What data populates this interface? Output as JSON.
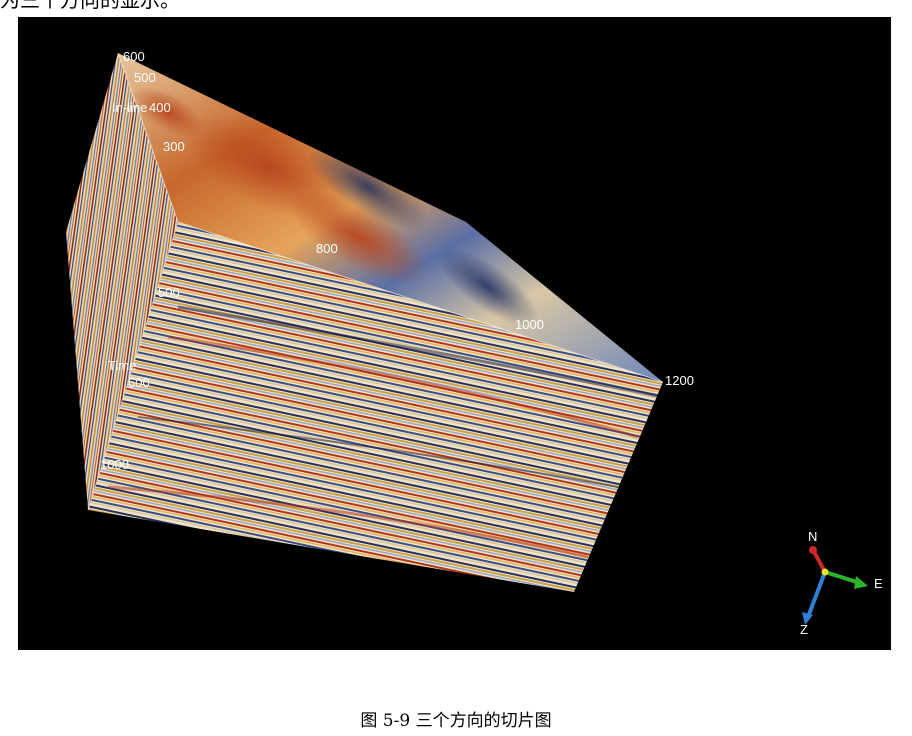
{
  "page": {
    "top_text": "为三个方向的显示。",
    "caption": "图 5-9 三个方向的切片图"
  },
  "figure": {
    "inline_axis": {
      "label": "In-line",
      "ticks": [
        "600",
        "500",
        "400",
        "300"
      ]
    },
    "crossline_ticks": [
      "800",
      "1000",
      "1200"
    ],
    "time_axis": {
      "label": "Time",
      "ticks": [
        "500",
        "600",
        "1000"
      ]
    },
    "compass": {
      "north": "N",
      "east": "E",
      "down": "Z",
      "colors": {
        "north": "#cc2a2a",
        "east": "#2db52d",
        "down": "#2f7fd6",
        "origin": "#f0e020"
      }
    },
    "colors": {
      "background": "#000000",
      "seismic_red": "#b23a1a",
      "seismic_orange": "#e0902a",
      "seismic_cream": "#f2e7cf",
      "seismic_blue": "#3b5a9a",
      "seismic_navy": "#1a2a55"
    }
  }
}
